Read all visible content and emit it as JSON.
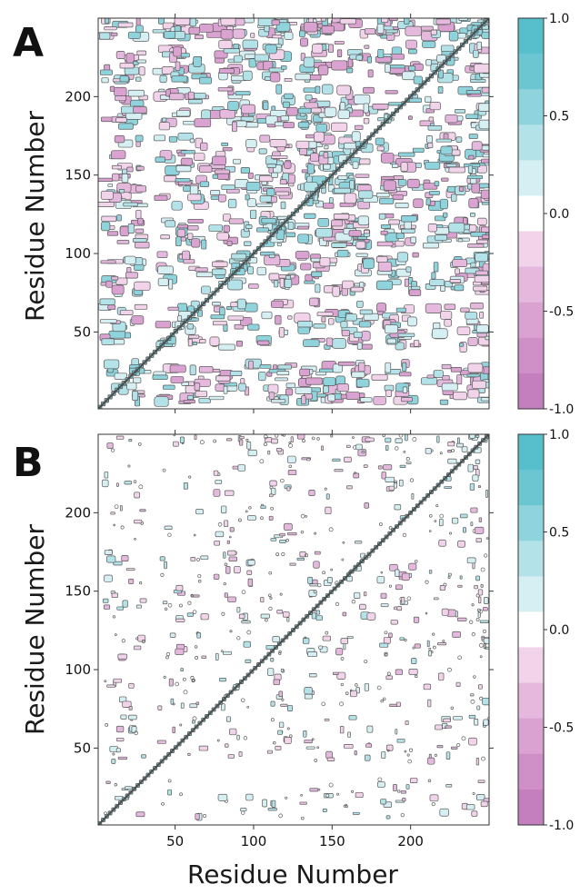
{
  "figure": {
    "xlabel": "Residue Number"
  },
  "chart_data": [
    {
      "type": "heatmap",
      "panel_label": "A",
      "ylabel": "Residue Number",
      "xlim": [
        1,
        250
      ],
      "ylim": [
        1,
        250
      ],
      "y_ticks": [
        50,
        100,
        150,
        200
      ],
      "x_ticks": [],
      "colorbar": {
        "min": -1.0,
        "max": 1.0,
        "labels": [
          "1.0",
          "0.5",
          "0.0",
          "-0.5",
          "-1.0"
        ]
      },
      "contour_color": "#5a5a5a",
      "palette": {
        "positive": [
          "#ffffff",
          "#d5eff3",
          "#b3e2e8",
          "#8fd3dc",
          "#6cc6d1",
          "#56bfcb"
        ],
        "negative": [
          "#ffffff",
          "#f1d3ea",
          "#e5b8dd",
          "#d9a2d1",
          "#cf90c8",
          "#c47fbe"
        ]
      },
      "density": "dense"
    },
    {
      "type": "heatmap",
      "panel_label": "B",
      "ylabel": "Residue Number",
      "xlim": [
        1,
        250
      ],
      "ylim": [
        1,
        250
      ],
      "y_ticks": [
        50,
        100,
        150,
        200
      ],
      "x_ticks": [
        50,
        100,
        150,
        200
      ],
      "colorbar": {
        "min": -1.0,
        "max": 1.0,
        "labels": [
          "1.0",
          "0.5",
          "0.0",
          "-0.5",
          "-1.0"
        ]
      },
      "contour_color": "#5a5a5a",
      "palette": {
        "positive": [
          "#ffffff",
          "#d5eff3",
          "#b3e2e8",
          "#8fd3dc",
          "#6cc6d1",
          "#56bfcb"
        ],
        "negative": [
          "#ffffff",
          "#f1d3ea",
          "#e5b8dd",
          "#d9a2d1",
          "#cf90c8",
          "#c47fbe"
        ]
      },
      "density": "sparse"
    }
  ]
}
